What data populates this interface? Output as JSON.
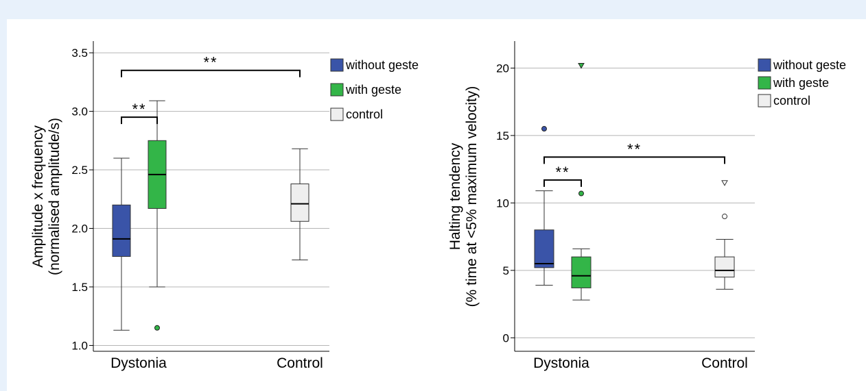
{
  "chart_data": [
    {
      "type": "boxplot",
      "ylabel": [
        "Amplitude x frequency",
        "(normalised amplitude/s)"
      ],
      "categories": [
        "Dystonia",
        "Control"
      ],
      "yticks": [
        "1.0",
        "1.5",
        "2.0",
        "2.5",
        "3.0",
        "3.5"
      ],
      "ylim": [
        0.95,
        3.6
      ],
      "grid": true,
      "legend_position": "top-right",
      "legend": [
        {
          "label": "without geste",
          "color": "#3a54a8"
        },
        {
          "label": "with geste",
          "color": "#33b548"
        },
        {
          "label": "control",
          "color": "#efefef"
        }
      ],
      "boxes": [
        {
          "series": "without geste",
          "category": "Dystonia",
          "min": 1.13,
          "q1": 1.76,
          "median": 1.91,
          "q3": 2.2,
          "max": 2.6,
          "outliers": [],
          "color": "#3a54a8"
        },
        {
          "series": "with geste",
          "category": "Dystonia",
          "min": 1.5,
          "q1": 2.17,
          "median": 2.46,
          "q3": 2.75,
          "max": 3.09,
          "outliers": [
            {
              "value": 1.15,
              "marker": "circle"
            }
          ],
          "color": "#33b548"
        },
        {
          "series": "control",
          "category": "Control",
          "min": 1.73,
          "q1": 2.06,
          "median": 2.21,
          "q3": 2.38,
          "max": 2.68,
          "outliers": [],
          "color": "#efefef"
        }
      ],
      "significance": [
        {
          "label": "**",
          "from": "without geste",
          "to": "with geste",
          "y": 2.95
        },
        {
          "label": "**",
          "from": "without geste",
          "to": "control",
          "y": 3.35
        }
      ]
    },
    {
      "type": "boxplot",
      "ylabel": [
        "Halting tendency",
        "(% time at <5% maximum velocity)"
      ],
      "categories": [
        "Dystonia",
        "Control"
      ],
      "yticks": [
        "0",
        "5",
        "10",
        "15",
        "20"
      ],
      "ylim": [
        -1,
        22
      ],
      "grid": true,
      "legend_position": "top-right",
      "legend": [
        {
          "label": "without geste",
          "color": "#3a54a8"
        },
        {
          "label": "with geste",
          "color": "#33b548"
        },
        {
          "label": "control",
          "color": "#efefef"
        }
      ],
      "boxes": [
        {
          "series": "without geste",
          "category": "Dystonia",
          "min": 3.9,
          "q1": 5.2,
          "median": 5.5,
          "q3": 8.0,
          "max": 10.9,
          "outliers": [
            {
              "value": 15.5,
              "marker": "circle"
            }
          ],
          "color": "#3a54a8"
        },
        {
          "series": "with geste",
          "category": "Dystonia",
          "min": 2.8,
          "q1": 3.7,
          "median": 4.6,
          "q3": 6.0,
          "max": 6.6,
          "outliers": [
            {
              "value": 10.7,
              "marker": "circle"
            },
            {
              "value": 20.2,
              "marker": "triangle"
            }
          ],
          "color": "#33b548"
        },
        {
          "series": "control",
          "category": "Control",
          "min": 3.6,
          "q1": 4.5,
          "median": 5.0,
          "q3": 6.0,
          "max": 7.3,
          "outliers": [
            {
              "value": 9.0,
              "marker": "open-circle"
            },
            {
              "value": 11.5,
              "marker": "open-triangle"
            }
          ],
          "color": "#efefef"
        }
      ],
      "significance": [
        {
          "label": "**",
          "from": "without geste",
          "to": "with geste",
          "y": 11.7
        },
        {
          "label": "**",
          "from": "without geste",
          "to": "control",
          "y": 13.4
        }
      ]
    }
  ]
}
